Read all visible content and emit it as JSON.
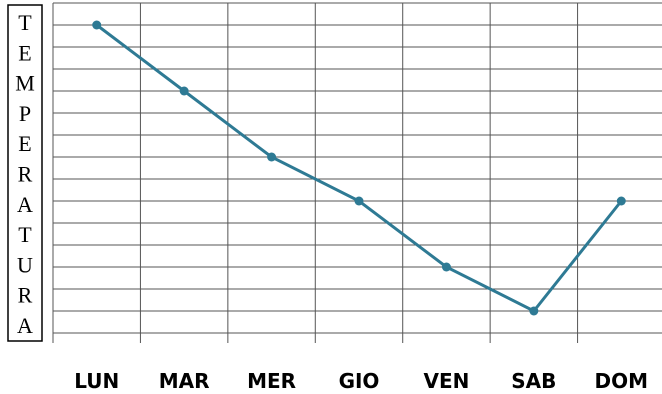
{
  "chart_data": {
    "type": "line",
    "ylabel": "TEMPERATURA",
    "categories": [
      "LUN",
      "MAR",
      "MER",
      "GIO",
      "VEN",
      "SAB",
      "DOM"
    ],
    "values": [
      14,
      11,
      8,
      6,
      3,
      1,
      6
    ],
    "color": "#2e7a94",
    "ylim": [
      0,
      15
    ],
    "yticks": [
      0,
      1,
      2,
      3,
      4,
      5,
      6,
      7,
      8,
      9,
      10,
      11,
      12,
      13,
      14,
      15
    ],
    "grid": true
  }
}
